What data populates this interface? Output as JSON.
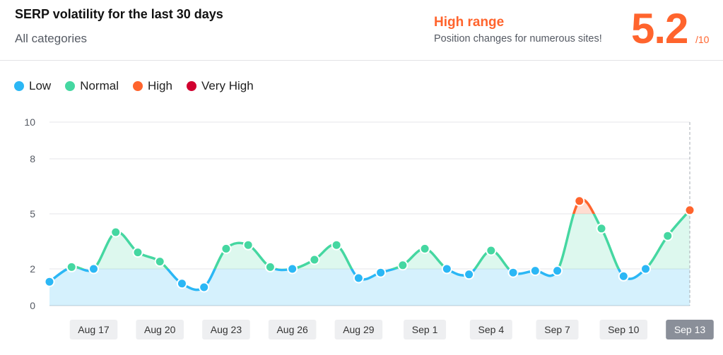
{
  "header": {
    "title": "SERP volatility for the last 30 days",
    "subtitle": "All categories",
    "range_label": "High range",
    "range_desc": "Position changes for numerous sites!",
    "score": "5.2",
    "score_max": "/10"
  },
  "legend": [
    {
      "label": "Low",
      "color": "#2bb7f5"
    },
    {
      "label": "Normal",
      "color": "#45d7a1"
    },
    {
      "label": "High",
      "color": "#ff642d"
    },
    {
      "label": "Very High",
      "color": "#d1002f"
    }
  ],
  "chart_data": {
    "type": "area",
    "ylim": [
      0,
      10
    ],
    "yticks": [
      0,
      2,
      5,
      8,
      10
    ],
    "thresholds": {
      "low_max": 2,
      "normal_max": 5
    },
    "colors": {
      "low": "#2bb7f5",
      "normal": "#45d7a1",
      "high": "#ff642d",
      "very_high": "#d1002f"
    },
    "x_labels": [
      "Aug 17",
      "Aug 20",
      "Aug 23",
      "Aug 26",
      "Aug 29",
      "Sep 1",
      "Sep 4",
      "Sep 7",
      "Sep 10",
      "Sep 13"
    ],
    "x_label_indices": [
      3,
      6,
      9,
      12,
      15,
      18,
      21,
      24,
      27,
      30
    ],
    "values": [
      1.3,
      2.1,
      2.0,
      4.0,
      2.9,
      2.4,
      1.2,
      1.0,
      3.1,
      3.3,
      2.1,
      2.0,
      2.5,
      3.3,
      1.5,
      1.8,
      2.2,
      3.1,
      2.0,
      1.7,
      3.0,
      1.8,
      1.9,
      1.9,
      5.7,
      4.2,
      1.6,
      2.0,
      3.8,
      5.2
    ],
    "selected_index": 30
  }
}
